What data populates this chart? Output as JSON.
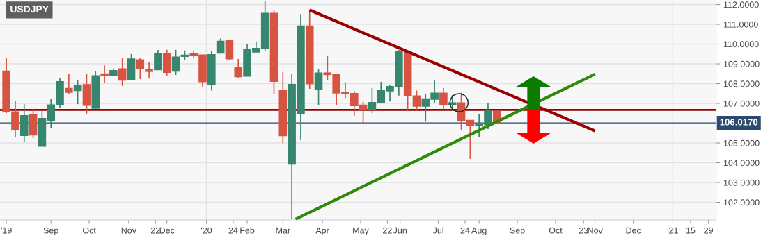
{
  "chart_data": {
    "type": "candlestick",
    "title": "USDJPY",
    "x": [
      "2019-07-28",
      "2019-08-04",
      "2019-08-11",
      "2019-08-18",
      "2019-08-25",
      "2019-09-01",
      "2019-09-08",
      "2019-09-15",
      "2019-09-22",
      "2019-09-29",
      "2019-10-06",
      "2019-10-13",
      "2019-10-20",
      "2019-10-27",
      "2019-11-03",
      "2019-11-10",
      "2019-11-17",
      "2019-11-24",
      "2019-12-01",
      "2019-12-08",
      "2019-12-15",
      "2019-12-22",
      "2019-12-29",
      "2020-01-05",
      "2020-01-12",
      "2020-01-19",
      "2020-01-26",
      "2020-02-02",
      "2020-02-09",
      "2020-02-16",
      "2020-02-23",
      "2020-03-01",
      "2020-03-08",
      "2020-03-15",
      "2020-03-22",
      "2020-03-29",
      "2020-04-05",
      "2020-04-12",
      "2020-04-19",
      "2020-04-26",
      "2020-05-03",
      "2020-05-10",
      "2020-05-17",
      "2020-05-24",
      "2020-05-31",
      "2020-06-07",
      "2020-06-14",
      "2020-06-21",
      "2020-06-28",
      "2020-07-05",
      "2020-07-12",
      "2020-07-19",
      "2020-07-26",
      "2020-08-02",
      "2020-08-09",
      "2020-08-16"
    ],
    "ohlc": [
      [
        108.62,
        109.32,
        106.51,
        106.6
      ],
      [
        106.56,
        107.12,
        105.27,
        105.7
      ],
      [
        105.39,
        106.96,
        105.04,
        106.37
      ],
      [
        106.43,
        106.73,
        105.25,
        105.42
      ],
      [
        104.85,
        106.63,
        104.85,
        106.23
      ],
      [
        106.14,
        107.24,
        105.74,
        106.91
      ],
      [
        106.95,
        108.27,
        106.76,
        108.09
      ],
      [
        107.75,
        108.48,
        107.5,
        107.57
      ],
      [
        107.66,
        108.2,
        106.96,
        107.89
      ],
      [
        107.94,
        108.48,
        106.48,
        106.92
      ],
      [
        106.77,
        108.62,
        106.73,
        108.39
      ],
      [
        108.48,
        108.92,
        108.04,
        108.43
      ],
      [
        108.41,
        108.77,
        108.39,
        108.65
      ],
      [
        108.74,
        109.29,
        107.88,
        108.19
      ],
      [
        108.21,
        109.5,
        108.21,
        109.24
      ],
      [
        109.19,
        109.29,
        108.23,
        108.78
      ],
      [
        108.7,
        109.08,
        108.26,
        108.63
      ],
      [
        108.71,
        109.7,
        108.71,
        109.5
      ],
      [
        109.52,
        109.71,
        108.41,
        108.58
      ],
      [
        108.64,
        109.71,
        108.44,
        109.33
      ],
      [
        109.39,
        109.68,
        109.18,
        109.43
      ],
      [
        109.5,
        109.68,
        109.32,
        109.45
      ],
      [
        109.44,
        109.46,
        107.85,
        108.11
      ],
      [
        107.98,
        109.67,
        107.65,
        109.46
      ],
      [
        109.56,
        110.28,
        109.56,
        110.13
      ],
      [
        110.18,
        110.18,
        109.18,
        109.27
      ],
      [
        108.79,
        109.25,
        108.29,
        108.36
      ],
      [
        108.39,
        110.02,
        108.39,
        109.73
      ],
      [
        109.61,
        110.13,
        109.61,
        109.77
      ],
      [
        109.79,
        112.19,
        109.65,
        111.54
      ],
      [
        111.54,
        111.7,
        107.49,
        108.13
      ],
      [
        107.67,
        108.58,
        104.99,
        105.38
      ],
      [
        103.94,
        108.5,
        101.16,
        107.95
      ],
      [
        106.51,
        111.51,
        105.15,
        110.9
      ],
      [
        110.9,
        111.75,
        107.74,
        108.0
      ],
      [
        107.74,
        108.74,
        106.92,
        108.53
      ],
      [
        108.53,
        109.4,
        108.19,
        108.47
      ],
      [
        108.44,
        108.5,
        106.92,
        107.54
      ],
      [
        107.54,
        108.07,
        107.27,
        107.5
      ],
      [
        107.49,
        107.63,
        106.37,
        106.9
      ],
      [
        106.9,
        107.09,
        105.99,
        106.69
      ],
      [
        106.69,
        107.78,
        106.51,
        107.04
      ],
      [
        107.04,
        108.09,
        107.04,
        107.64
      ],
      [
        107.64,
        107.95,
        107.1,
        107.84
      ],
      [
        107.86,
        109.7,
        107.4,
        109.61
      ],
      [
        109.61,
        109.61,
        106.63,
        107.4
      ],
      [
        107.37,
        107.65,
        106.69,
        106.87
      ],
      [
        106.87,
        107.47,
        106.08,
        107.22
      ],
      [
        107.22,
        108.18,
        107.04,
        107.51
      ],
      [
        107.51,
        107.78,
        106.71,
        106.95
      ],
      [
        106.96,
        107.43,
        106.63,
        107.02
      ],
      [
        107.02,
        107.54,
        105.67,
        106.14
      ],
      [
        106.13,
        106.13,
        104.2,
        105.91
      ],
      [
        105.89,
        106.48,
        105.32,
        105.95
      ],
      [
        105.93,
        107.04,
        105.7,
        106.6
      ],
      [
        106.6,
        106.6,
        106.02,
        106.02
      ]
    ],
    "colors": [
      "#d75442",
      "#d75442",
      "#37866f",
      "#d75442",
      "#37866f",
      "#37866f",
      "#37866f",
      "#d75442",
      "#37866f",
      "#d75442",
      "#37866f",
      "#d75442",
      "#37866f",
      "#d75442",
      "#37866f",
      "#d75442",
      "#d75442",
      "#37866f",
      "#d75442",
      "#37866f",
      "#37866f",
      "#d75442",
      "#d75442",
      "#37866f",
      "#37866f",
      "#d75442",
      "#d75442",
      "#37866f",
      "#37866f",
      "#37866f",
      "#d75442",
      "#d75442",
      "#37866f",
      "#37866f",
      "#d75442",
      "#37866f",
      "#d75442",
      "#d75442",
      "#d75442",
      "#d75442",
      "#d75442",
      "#37866f",
      "#37866f",
      "#37866f",
      "#37866f",
      "#d75442",
      "#d75442",
      "#37866f",
      "#37866f",
      "#d75442",
      "#37866f",
      "#d75442",
      "#d75442",
      "#37866f",
      "#37866f",
      "#d75442"
    ],
    "series": [
      {
        "type": "line",
        "color": "#990000",
        "x": [
          "2020-03-22",
          "2020-11-01"
        ],
        "values": [
          111.72,
          105.61
        ]
      },
      {
        "type": "line",
        "color": "#2f8a0a",
        "x": [
          "2020-03-11",
          "2020-11-01"
        ],
        "values": [
          101.15,
          108.48
        ]
      }
    ],
    "ref_lines": [
      {
        "axis": "y",
        "value": 106.67,
        "color": "#990000"
      },
      {
        "axis": "y",
        "value": 106.017,
        "label": "106.0170",
        "color": "#2b4a6f"
      },
      {
        "axis": "x",
        "value": "2020-01-01",
        "color": "#e2e2e2"
      },
      {
        "axis": "x",
        "value": "2021-01-01",
        "color": "#e2e2e2"
      }
    ],
    "xlim": [
      "2019-07-23",
      "2021-02-04"
    ],
    "xticks": [
      {
        "value": "2019-07-28",
        "label": "'19"
      },
      {
        "value": "2019-09-01",
        "label": "Sep"
      },
      {
        "value": "2019-10-01",
        "label": "Oct"
      },
      {
        "value": "2019-11-01",
        "label": "Nov"
      },
      {
        "value": "2019-11-22",
        "label": "22"
      },
      {
        "value": "2019-12-01",
        "label": "Dec"
      },
      {
        "value": "2020-01-01",
        "label": "'20"
      },
      {
        "value": "2020-01-22",
        "label": "24"
      },
      {
        "value": "2020-02-02",
        "label": "Feb"
      },
      {
        "value": "2020-03-01",
        "label": "Mar"
      },
      {
        "value": "2020-04-01",
        "label": "Apr"
      },
      {
        "value": "2020-05-01",
        "label": "May"
      },
      {
        "value": "2020-05-22",
        "label": "22"
      },
      {
        "value": "2020-06-01",
        "label": "Jun"
      },
      {
        "value": "2020-07-01",
        "label": "Jul"
      },
      {
        "value": "2020-07-22",
        "label": "24"
      },
      {
        "value": "2020-08-02",
        "label": "Aug"
      },
      {
        "value": "2020-09-01",
        "label": "Sep"
      },
      {
        "value": "2020-10-01",
        "label": "Oct"
      },
      {
        "value": "2020-10-23",
        "label": "23"
      },
      {
        "value": "2020-11-01",
        "label": "Nov"
      },
      {
        "value": "2020-12-01",
        "label": "Dec"
      },
      {
        "value": "2021-01-01",
        "label": "'21"
      },
      {
        "value": "2021-01-15",
        "label": "15"
      },
      {
        "value": "2021-01-29",
        "label": "29"
      }
    ],
    "ylim": [
      101.11,
      112.23
    ],
    "yticks": [
      {
        "value": 102,
        "label": "102.0000"
      },
      {
        "value": 103,
        "label": "103.0000"
      },
      {
        "value": 104,
        "label": "104.0000"
      },
      {
        "value": 105,
        "label": "105.0000"
      },
      {
        "value": 107,
        "label": "107.0000"
      },
      {
        "value": 108,
        "label": "108.0000"
      },
      {
        "value": 109,
        "label": "109.0000"
      },
      {
        "value": 110,
        "label": "110.0000"
      },
      {
        "value": 111,
        "label": "111.0000"
      },
      {
        "value": 112,
        "label": "112.0000"
      }
    ],
    "grid": "y"
  }
}
